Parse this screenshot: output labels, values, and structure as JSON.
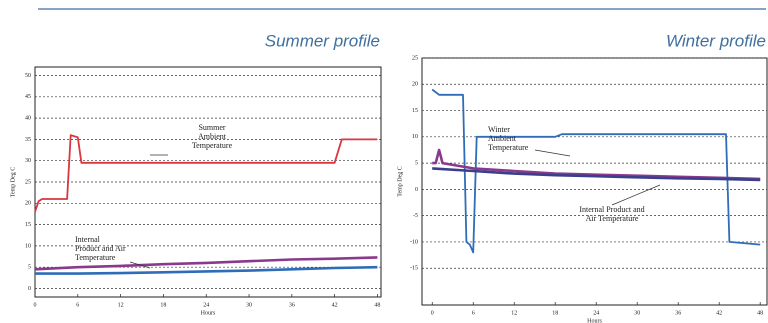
{
  "chart_data": [
    {
      "type": "line",
      "title": "Summer profile",
      "xlabel": "Hours",
      "ylabel": "Temp Deg C",
      "xlim": [
        0,
        48.5
      ],
      "ylim": [
        -2,
        52
      ],
      "xticks": [
        0,
        6,
        12,
        18,
        24,
        30,
        36,
        42,
        48
      ],
      "yticks": [
        0,
        5,
        10,
        15,
        20,
        25,
        30,
        35,
        40,
        45,
        50
      ],
      "grid": true,
      "series": [
        {
          "color": "#d9363e",
          "x": [
            0,
            0.5,
            1,
            4.5,
            5,
            6,
            6.5,
            7,
            12,
            18,
            24,
            30,
            36,
            42,
            43,
            48
          ],
          "values": [
            18,
            20.5,
            21,
            21,
            36,
            35.5,
            29.5,
            29.5,
            29.5,
            29.5,
            29.5,
            29.5,
            29.5,
            29.5,
            35,
            35
          ]
        },
        {
          "color": "#8a3a8c",
          "x": [
            0,
            6,
            12,
            18,
            24,
            30,
            36,
            42,
            48
          ],
          "values": [
            4.5,
            5,
            5.3,
            5.7,
            6,
            6.4,
            6.8,
            7,
            7.3
          ]
        },
        {
          "color": "#2f6db8",
          "x": [
            0,
            6,
            12,
            18,
            24,
            30,
            36,
            42,
            48
          ],
          "values": [
            3.5,
            3.5,
            3.6,
            3.8,
            4,
            4.2,
            4.5,
            4.8,
            5
          ]
        }
      ],
      "annotations": [
        [
          "Summer",
          "Ambient",
          "Temperature"
        ],
        [
          "Internal",
          "Product and Air",
          "Temperature"
        ]
      ]
    },
    {
      "type": "line",
      "title": "Winter profile",
      "xlabel": "Hours",
      "ylabel": "Temp Deg C",
      "xlim": [
        -1.5,
        49
      ],
      "ylim": [
        -22,
        25
      ],
      "xticks": [
        0,
        6,
        12,
        18,
        24,
        30,
        36,
        42,
        48
      ],
      "yticks": [
        -15,
        -10,
        -5,
        0,
        5,
        10,
        15,
        20,
        25
      ],
      "grid": true,
      "series": [
        {
          "color": "#2f6db8",
          "x": [
            0,
            1,
            4.5,
            5,
            5.5,
            6,
            6.5,
            7,
            12,
            18,
            19,
            24,
            30,
            36,
            42,
            43,
            43.5,
            48
          ],
          "values": [
            19,
            18,
            18,
            -10,
            -10.5,
            -12,
            10,
            10,
            10,
            10,
            10.5,
            10.5,
            10.5,
            10.5,
            10.5,
            10.5,
            -10,
            -10.5
          ]
        },
        {
          "color": "#8a3a8c",
          "x": [
            0,
            0.5,
            1,
            1.5,
            6,
            12,
            18,
            24,
            30,
            36,
            42,
            48
          ],
          "values": [
            5,
            5,
            7.5,
            5,
            4,
            3.5,
            3,
            2.8,
            2.6,
            2.4,
            2.2,
            2
          ]
        },
        {
          "color": "#3a3f8c",
          "x": [
            0,
            6,
            12,
            18,
            24,
            30,
            36,
            42,
            48
          ],
          "values": [
            4,
            3.5,
            3,
            2.7,
            2.5,
            2.3,
            2.1,
            2,
            1.8
          ]
        }
      ],
      "annotations": [
        [
          "Winter",
          "Ambient",
          "Temperature"
        ],
        [
          "Internal Product and",
          "Air Temperature"
        ]
      ]
    }
  ]
}
